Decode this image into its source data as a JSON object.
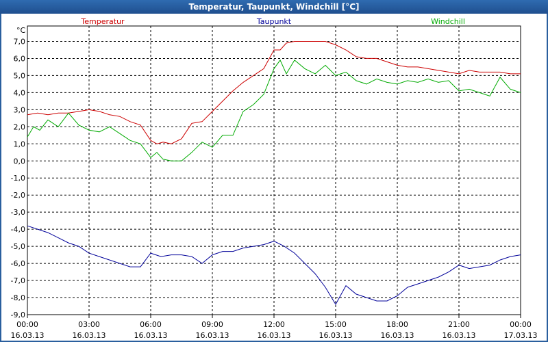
{
  "window": {
    "title": "Temperatur, Taupunkt, Windchill [°C]"
  },
  "chart_data": {
    "type": "line",
    "title": "Temperatur, Taupunkt, Windchill [°C]",
    "ylabel": "°C",
    "ylim": [
      -9,
      7.9
    ],
    "yticks": [
      "7,0",
      "6,0",
      "5,0",
      "4,0",
      "3,0",
      "2,0",
      "1,0",
      "0,0",
      "-1,0",
      "-2,0",
      "-3,0",
      "-4,0",
      "-5,0",
      "-6,0",
      "-7,0",
      "-8,0",
      "-9,0"
    ],
    "ytick_values": [
      7,
      6,
      5,
      4,
      3,
      2,
      1,
      0,
      -1,
      -2,
      -3,
      -4,
      -5,
      -6,
      -7,
      -8,
      -9
    ],
    "xlim": [
      0,
      24
    ],
    "xtick_values": [
      0,
      3,
      6,
      9,
      12,
      15,
      18,
      21,
      24
    ],
    "xtick_times": [
      "00:00",
      "03:00",
      "06:00",
      "09:00",
      "12:00",
      "15:00",
      "18:00",
      "21:00",
      "00:00"
    ],
    "xtick_dates": [
      "16.03.13",
      "16.03.13",
      "16.03.13",
      "16.03.13",
      "16.03.13",
      "16.03.13",
      "16.03.13",
      "16.03.13",
      "17.03.13"
    ],
    "grid": true,
    "series": [
      {
        "name": "Temperatur",
        "color": "#cc0000",
        "x": [
          0,
          0.5,
          1,
          1.5,
          2,
          2.5,
          3,
          3.5,
          4,
          4.5,
          5,
          5.5,
          6,
          6.3,
          6.6,
          7,
          7.5,
          8,
          8.5,
          9,
          9.5,
          10,
          10.5,
          11,
          11.5,
          12,
          12.3,
          12.6,
          13,
          13.5,
          14,
          14.5,
          15,
          15.5,
          16,
          16.5,
          17,
          17.5,
          18,
          18.5,
          19,
          19.5,
          20,
          20.5,
          21,
          21.5,
          22,
          22.5,
          23,
          23.5,
          24
        ],
        "values": [
          2.7,
          2.8,
          2.7,
          2.8,
          2.8,
          2.9,
          3.0,
          2.9,
          2.7,
          2.6,
          2.3,
          2.1,
          1.2,
          1.0,
          1.1,
          1.0,
          1.3,
          2.2,
          2.3,
          2.9,
          3.5,
          4.1,
          4.6,
          5.0,
          5.4,
          6.5,
          6.5,
          6.9,
          7.0,
          7.0,
          7.0,
          7.0,
          6.8,
          6.5,
          6.1,
          6.0,
          6.0,
          5.8,
          5.6,
          5.5,
          5.5,
          5.4,
          5.3,
          5.2,
          5.1,
          5.3,
          5.2,
          5.2,
          5.2,
          5.1,
          5.1
        ]
      },
      {
        "name": "Taupunkt",
        "color": "#000099",
        "x": [
          0,
          0.5,
          1,
          1.5,
          2,
          2.5,
          3,
          3.5,
          4,
          4.5,
          5,
          5.5,
          6,
          6.5,
          7,
          7.5,
          8,
          8.5,
          9,
          9.5,
          10,
          10.5,
          11,
          11.5,
          12,
          12.5,
          13,
          13.5,
          14,
          14.5,
          15,
          15.5,
          16,
          16.5,
          17,
          17.5,
          18,
          18.5,
          19,
          19.5,
          20,
          20.5,
          21,
          21.5,
          22,
          22.5,
          23,
          23.5,
          24
        ],
        "values": [
          -3.8,
          -4.0,
          -4.2,
          -4.5,
          -4.8,
          -5.0,
          -5.4,
          -5.6,
          -5.8,
          -6.0,
          -6.2,
          -6.2,
          -5.4,
          -5.6,
          -5.5,
          -5.5,
          -5.6,
          -6.0,
          -5.5,
          -5.3,
          -5.3,
          -5.1,
          -5.0,
          -4.9,
          -4.7,
          -5.0,
          -5.4,
          -6.0,
          -6.6,
          -7.4,
          -8.4,
          -7.3,
          -7.8,
          -8.0,
          -8.2,
          -8.2,
          -7.9,
          -7.4,
          -7.2,
          -7.0,
          -6.8,
          -6.5,
          -6.1,
          -6.3,
          -6.2,
          -6.1,
          -5.8,
          -5.6,
          -5.5
        ]
      },
      {
        "name": "Windchill",
        "color": "#00aa00",
        "x": [
          0,
          0.3,
          0.6,
          1,
          1.5,
          2,
          2.5,
          3,
          3.5,
          4,
          4.5,
          5,
          5.5,
          6,
          6.3,
          6.6,
          7,
          7.5,
          8,
          8.5,
          9,
          9.5,
          10,
          10.5,
          11,
          11.5,
          12,
          12.3,
          12.6,
          13,
          13.5,
          14,
          14.5,
          15,
          15.5,
          16,
          16.5,
          17,
          17.5,
          18,
          18.5,
          19,
          19.5,
          20,
          20.5,
          21,
          21.5,
          22,
          22.5,
          23,
          23.5,
          24
        ],
        "values": [
          1.4,
          2.0,
          1.8,
          2.4,
          2.0,
          2.8,
          2.1,
          1.8,
          1.7,
          2.0,
          1.6,
          1.2,
          1.0,
          0.2,
          0.5,
          0.1,
          0.0,
          0.0,
          0.5,
          1.1,
          0.8,
          1.5,
          1.5,
          2.9,
          3.3,
          3.9,
          5.4,
          5.9,
          5.1,
          5.9,
          5.4,
          5.1,
          5.6,
          5.0,
          5.2,
          4.7,
          4.5,
          4.8,
          4.6,
          4.5,
          4.7,
          4.6,
          4.8,
          4.6,
          4.7,
          4.1,
          4.2,
          4.0,
          3.8,
          4.9,
          4.2,
          4.0
        ]
      }
    ]
  }
}
